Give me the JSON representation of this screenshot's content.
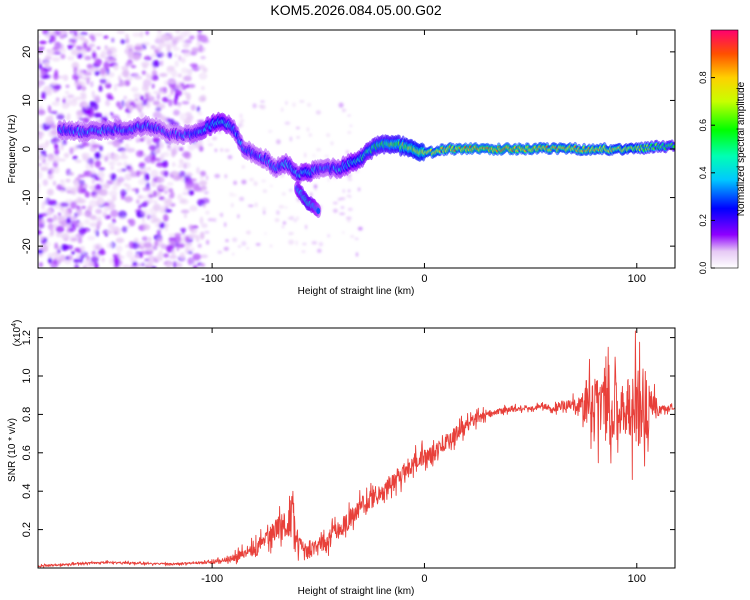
{
  "title": "KOM5.2026.084.05.00.G02",
  "chart_data": [
    {
      "type": "heatmap",
      "title": "KOM5.2026.084.05.00.G02",
      "xlabel": "Height of straight line (km)",
      "ylabel": "Frequency (Hz)",
      "xlim": [
        -182,
        118
      ],
      "ylim": [
        -24.5,
        24.5
      ],
      "x_ticks": [
        -100,
        0,
        100
      ],
      "x_tick_labels": [
        "-100",
        "0",
        "100"
      ],
      "y_ticks": [
        -20,
        -10,
        0,
        10,
        20
      ],
      "y_tick_labels": [
        "-20",
        "-10",
        "0",
        "10",
        "20"
      ],
      "colorbar": {
        "label": "Normalized spectral amplitude",
        "range": [
          0.0,
          1.0
        ],
        "ticks": [
          0.0,
          0.2,
          0.4,
          0.6,
          0.8
        ],
        "tick_labels": [
          "0.0",
          "0.2",
          "0.4",
          "0.6",
          "0.8"
        ]
      },
      "ridge": {
        "x": [
          -172,
          -160,
          -150,
          -140,
          -130,
          -120,
          -110,
          -100,
          -95,
          -90,
          -85,
          -80,
          -75,
          -70,
          -65,
          -60,
          -55,
          -50,
          -45,
          -40,
          -35,
          -30,
          -25,
          -20,
          -15,
          -10,
          -5,
          0,
          10,
          20,
          40,
          60,
          80,
          100,
          110,
          118
        ],
        "y": [
          4,
          3.5,
          4,
          4,
          5,
          3,
          3,
          5,
          6,
          4,
          0,
          -1,
          -2,
          -4,
          -3,
          -5,
          -5,
          -4,
          -4,
          -4,
          -3,
          -2,
          0,
          1,
          1,
          0.5,
          0,
          -1,
          0,
          0,
          0,
          0,
          0,
          0,
          0.5,
          0.5
        ],
        "amplitude": [
          0.3,
          0.3,
          0.3,
          0.3,
          0.3,
          0.25,
          0.3,
          0.4,
          0.4,
          0.35,
          0.3,
          0.3,
          0.3,
          0.3,
          0.35,
          0.35,
          0.4,
          0.3,
          0.3,
          0.35,
          0.4,
          0.45,
          0.5,
          0.55,
          0.6,
          0.65,
          0.7,
          0.75,
          0.8,
          0.85,
          0.85,
          0.8,
          0.8,
          0.7,
          0.6,
          0.55
        ]
      },
      "branch": {
        "x": [
          -60,
          -55,
          -50
        ],
        "y": [
          -8,
          -11,
          -12.5
        ],
        "amplitude": [
          0.35,
          0.45,
          0.3
        ]
      }
    },
    {
      "type": "line",
      "xlabel": "Height of straight line (km)",
      "ylabel": "SNR (10 * v/v)",
      "y_multiplier": "(x10",
      "y_multiplier_exp": "4",
      "y_multiplier_close": ")",
      "xlim": [
        -182,
        118
      ],
      "ylim": [
        0.0,
        1.25
      ],
      "x_ticks": [
        -100,
        0,
        100
      ],
      "x_tick_labels": [
        "-100",
        "0",
        "100"
      ],
      "y_ticks": [
        0.2,
        0.4,
        0.6,
        0.8,
        1.0,
        1.2
      ],
      "y_tick_labels": [
        "0.2",
        "0.4",
        "0.6",
        "0.8",
        "1.0",
        "1.2"
      ],
      "color": "#e8403a",
      "series": {
        "x": [
          -182,
          -150,
          -120,
          -100,
          -90,
          -85,
          -80,
          -75,
          -70,
          -65,
          -62,
          -60,
          -55,
          -50,
          -45,
          -40,
          -35,
          -30,
          -25,
          -20,
          -15,
          -10,
          -5,
          0,
          5,
          10,
          15,
          20,
          25,
          30,
          40,
          50,
          55,
          60,
          65,
          70,
          75,
          78,
          80,
          85,
          90,
          95,
          100,
          103,
          105,
          108,
          110,
          115,
          118
        ],
        "y": [
          0.01,
          0.03,
          0.02,
          0.03,
          0.05,
          0.08,
          0.1,
          0.15,
          0.2,
          0.22,
          0.3,
          0.15,
          0.08,
          0.12,
          0.15,
          0.2,
          0.26,
          0.32,
          0.36,
          0.4,
          0.45,
          0.5,
          0.55,
          0.58,
          0.6,
          0.65,
          0.7,
          0.75,
          0.78,
          0.8,
          0.83,
          0.83,
          0.85,
          0.82,
          0.85,
          0.85,
          0.84,
          0.85,
          0.83,
          0.85,
          0.85,
          0.85,
          0.83,
          0.85,
          0.84,
          0.84,
          0.83,
          0.83,
          0.84
        ]
      },
      "noise_envelope": {
        "x": [
          -182,
          -110,
          -95,
          -85,
          -75,
          -70,
          -65,
          -62,
          -58,
          -50,
          -40,
          -20,
          0,
          20,
          30,
          50,
          60,
          70,
          75,
          80,
          90,
          95,
          100,
          105,
          108,
          112,
          118
        ],
        "half_width": [
          0.01,
          0.01,
          0.02,
          0.05,
          0.08,
          0.12,
          0.15,
          0.18,
          0.06,
          0.08,
          0.1,
          0.1,
          0.09,
          0.07,
          0.04,
          0.02,
          0.03,
          0.06,
          0.15,
          0.35,
          0.3,
          0.3,
          0.45,
          0.35,
          0.15,
          0.04,
          0.02
        ]
      }
    }
  ]
}
